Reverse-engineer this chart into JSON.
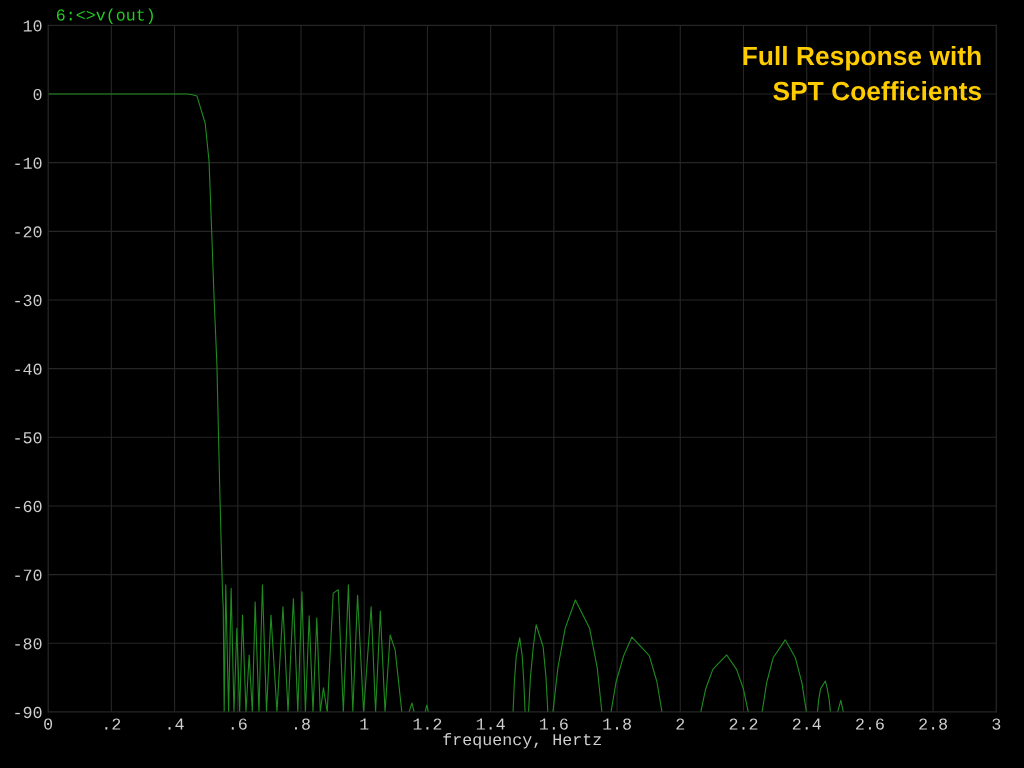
{
  "chart_data": {
    "type": "line",
    "title": "Full Response with\nSPT Coefficients",
    "xlabel": "frequency, Hertz",
    "xlim": [
      0,
      3
    ],
    "ylim": [
      -90,
      10
    ],
    "xticks": [
      0,
      {
        "value": 0.2,
        "label": ".2"
      },
      {
        "value": 0.4,
        "label": ".4"
      },
      {
        "value": 0.6,
        "label": ".6"
      },
      {
        "value": 0.8,
        "label": ".8"
      },
      1,
      1.2,
      1.4,
      1.6,
      1.8,
      2,
      2.2,
      2.4,
      2.6,
      2.8,
      3
    ],
    "yticks": [
      10,
      0,
      {
        "value": -10,
        "label": "-10"
      },
      {
        "value": -20,
        "label": "-20"
      },
      {
        "value": -30,
        "label": "-30"
      },
      {
        "value": -40,
        "label": "-40"
      },
      {
        "value": -50,
        "label": "-50"
      },
      {
        "value": -60,
        "label": "-60"
      },
      {
        "value": -70,
        "label": "-70"
      },
      {
        "value": -80,
        "label": "-80"
      },
      {
        "value": -90,
        "label": "-90"
      }
    ],
    "grid": true,
    "legend": "top left",
    "marker": "none",
    "line_style": "solid",
    "series": [
      {
        "name": "6:<>v(out)",
        "color": "#1f8a1f",
        "x": [
          0,
          0.1,
          0.2,
          0.3,
          0.4,
          0.44,
          0.456,
          0.471,
          0.497,
          0.509,
          0.517,
          0.525,
          0.534,
          0.539,
          0.544,
          0.55,
          0.552,
          0.554,
          0.557,
          0.562,
          0.571,
          0.579,
          0.588,
          0.597,
          0.606,
          0.615,
          0.626,
          0.636,
          0.646,
          0.655,
          0.667,
          0.678,
          0.691,
          0.705,
          0.724,
          0.743,
          0.759,
          0.776,
          0.79,
          0.803,
          0.814,
          0.826,
          0.838,
          0.85,
          0.861,
          0.871,
          0.883,
          0.902,
          0.918,
          0.934,
          0.95,
          0.964,
          0.979,
          0.998,
          1.022,
          1.036,
          1.051,
          1.066,
          1.082,
          1.098,
          1.119,
          1.13,
          1.142,
          1.151,
          1.158,
          1.175,
          1.193,
          1.198,
          1.203,
          1.35,
          1.471,
          1.475,
          1.481,
          1.492,
          1.5,
          1.505,
          1.509,
          1.515,
          1.52,
          1.526,
          1.535,
          1.544,
          1.566,
          1.575,
          1.581,
          1.59,
          1.597,
          1.613,
          1.636,
          1.668,
          1.713,
          1.737,
          1.752,
          1.765,
          1.781,
          1.797,
          1.821,
          1.847,
          1.902,
          1.926,
          1.942,
          2.0,
          2.065,
          2.08,
          2.103,
          2.147,
          2.178,
          2.2,
          2.215,
          2.24,
          2.259,
          2.273,
          2.294,
          2.332,
          2.364,
          2.385,
          2.399,
          2.42,
          2.434,
          2.438,
          2.444,
          2.459,
          2.465,
          2.471,
          2.475,
          2.49,
          2.498,
          2.508,
          2.516
        ],
        "values": [
          0,
          0,
          0,
          0,
          0,
          0,
          -0.1,
          -0.3,
          -4.3,
          -9.7,
          -19.4,
          -29.7,
          -39.4,
          -49.7,
          -59.4,
          -69.7,
          -73,
          -74.7,
          -90,
          -71.5,
          -90,
          -72,
          -90,
          -77.8,
          -90,
          -75.9,
          -90,
          -81.7,
          -90,
          -74,
          -90,
          -71.5,
          -90,
          -75.9,
          -90,
          -74.7,
          -90,
          -73.5,
          -90,
          -72.5,
          -90,
          -76,
          -90,
          -76.3,
          -90,
          -86.5,
          -90,
          -72.7,
          -72.2,
          -90,
          -71.5,
          -90,
          -73,
          -90,
          -74.7,
          -90,
          -75.3,
          -90,
          -78.8,
          -81,
          -90,
          null,
          -90,
          -88.7,
          -90,
          null,
          -90,
          -89,
          -90,
          null,
          -90,
          -85.7,
          -81.9,
          -79.2,
          -81.9,
          -85.7,
          -90,
          null,
          -90,
          -84.9,
          -80.5,
          -77.3,
          -80.5,
          -84.9,
          -90,
          null,
          -90,
          -83.5,
          -77.8,
          -73.7,
          -77.8,
          -83.5,
          -90,
          null,
          -90,
          -85.6,
          -81.8,
          -79.1,
          -81.8,
          -85.6,
          -90,
          null,
          -90,
          -86.7,
          -83.8,
          -81.7,
          -83.8,
          -86.7,
          -90,
          null,
          -90,
          -85.8,
          -82.1,
          -79.5,
          -82.1,
          -85.8,
          -90,
          null,
          -90,
          -88.2,
          -86.6,
          -85.5,
          -86.6,
          -88.2,
          -90,
          null,
          -90,
          -88.3,
          -90
        ]
      }
    ]
  }
}
